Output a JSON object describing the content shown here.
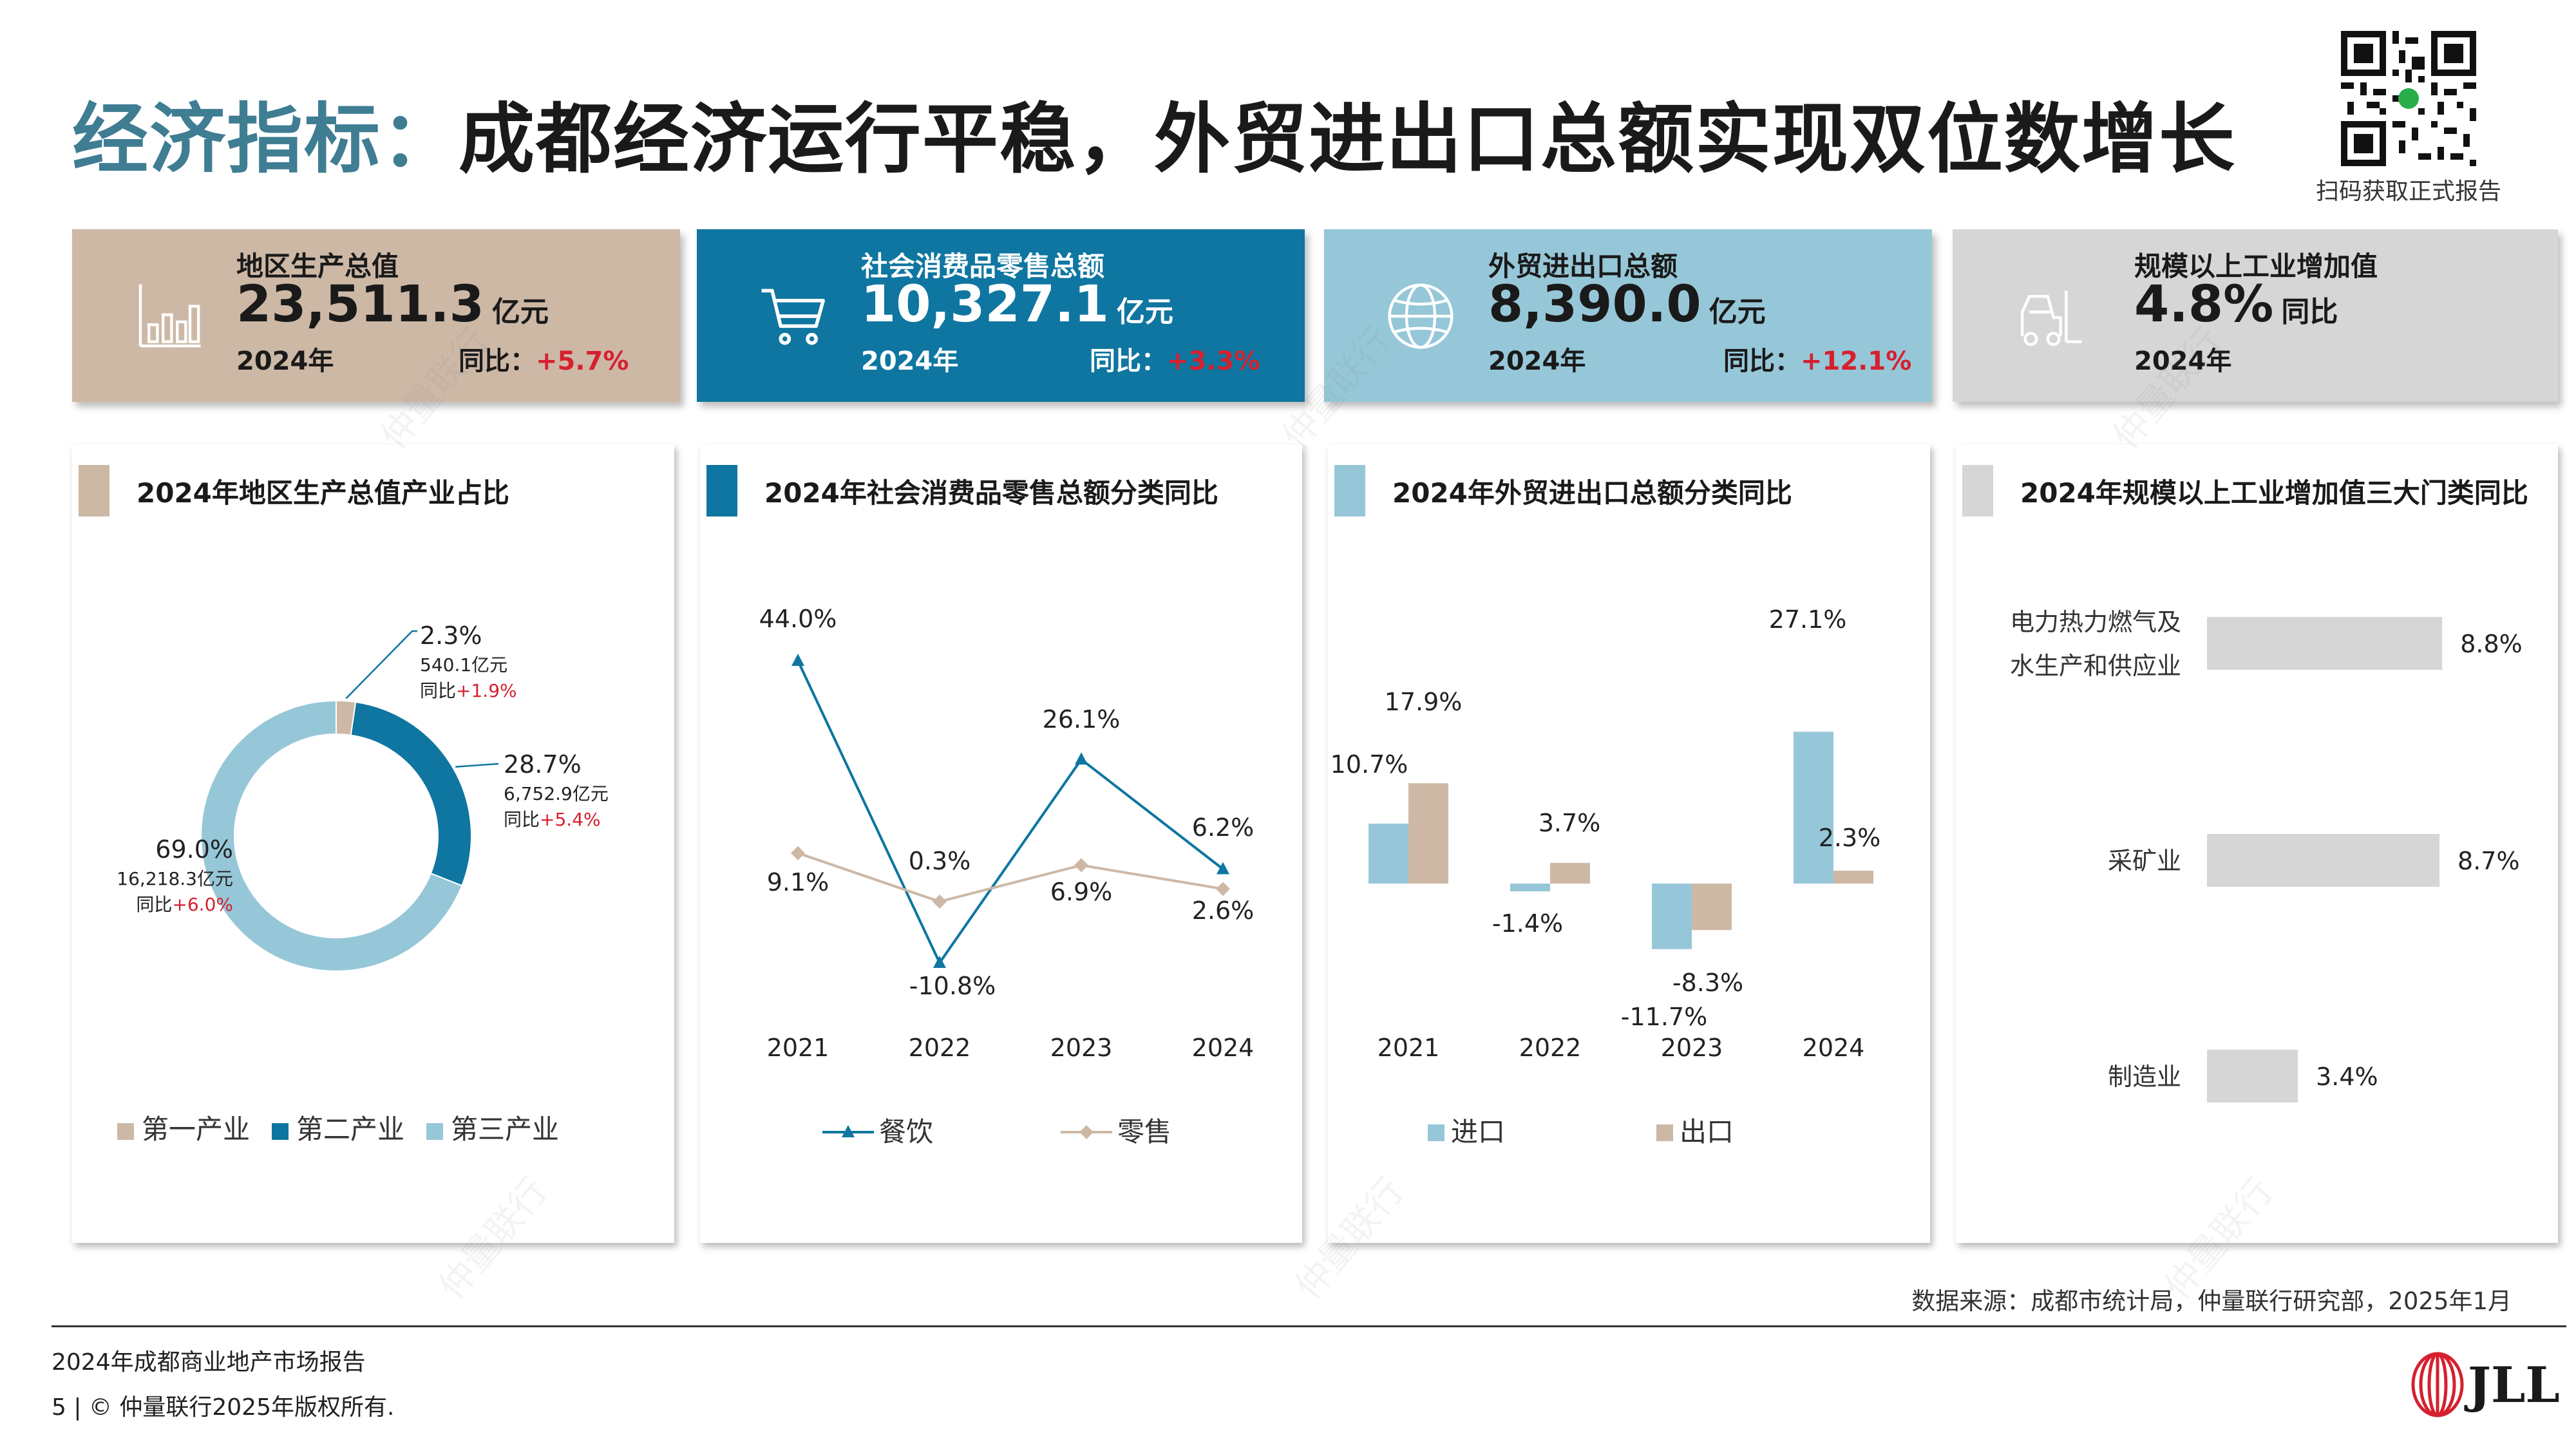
{
  "title": {
    "prefix": "经济指标：",
    "main": "成都经济运行平稳，外贸进出口总额实现双位数增长"
  },
  "qr_caption": "扫码获取正式报告",
  "kpis": [
    {
      "label": "地区生产总值",
      "value": "23,511.3",
      "unit": "亿元",
      "year": "2024年",
      "yoy_label": "同比：",
      "yoy": "+5.7%",
      "bg": "#cdb8a6",
      "fg": "#1a1a1a",
      "icon": "bar-chart-icon"
    },
    {
      "label": "社会消费品零售总额",
      "value": "10,327.1",
      "unit": "亿元",
      "year": "2024年",
      "yoy_label": "同比：",
      "yoy": "+3.3%",
      "bg": "#0e76a0",
      "fg": "#ffffff",
      "icon": "shopping-cart-icon"
    },
    {
      "label": "外贸进出口总额",
      "value": "8,390.0",
      "unit": "亿元",
      "year": "2024年",
      "yoy_label": "同比：",
      "yoy": "+12.1%",
      "bg": "#96c7d8",
      "fg": "#1a1a1a",
      "icon": "globe-icon"
    },
    {
      "label": "规模以上工业增加值",
      "value": "4.8%",
      "unit": "同比",
      "year": "2024年",
      "yoy_label": "",
      "yoy": "",
      "bg": "#d6d6d6",
      "fg": "#1a1a1a",
      "icon": "forklift-icon"
    }
  ],
  "panels": [
    {
      "title": "2024年地区生产总值产业占比",
      "accent": "#cdb8a6"
    },
    {
      "title": "2024年社会消费品零售总额分类同比",
      "accent": "#0e76a0"
    },
    {
      "title": "2024年外贸进出口总额分类同比",
      "accent": "#96c7d8"
    },
    {
      "title": "2024年规模以上工业增加值三大门类同比",
      "accent": "#d6d6d6"
    }
  ],
  "chart_data": [
    {
      "type": "pie",
      "title": "2024年地区生产总值产业占比",
      "legend_position": "bottom",
      "slices": [
        {
          "name": "第一产业",
          "pct": 2.3,
          "pct_label": "2.3%",
          "amount": "540.1亿元",
          "yoy_label": "同比",
          "yoy": "+1.9%",
          "color": "#cdb8a6"
        },
        {
          "name": "第二产业",
          "pct": 28.7,
          "pct_label": "28.7%",
          "amount": "6,752.9亿元",
          "yoy_label": "同比",
          "yoy": "+5.4%",
          "color": "#0e76a0"
        },
        {
          "name": "第三产业",
          "pct": 69.0,
          "pct_label": "69.0%",
          "amount": "16,218.3亿元",
          "yoy_label": "同比",
          "yoy": "+6.0%",
          "color": "#96c7d8"
        }
      ]
    },
    {
      "type": "line",
      "title": "2024年社会消费品零售总额分类同比",
      "categories": [
        "2021",
        "2022",
        "2023",
        "2024"
      ],
      "legend_position": "bottom",
      "series": [
        {
          "name": "餐饮",
          "values": [
            44.0,
            -10.8,
            26.1,
            6.2
          ],
          "labels": [
            "44.0%",
            "-10.8%",
            "26.1%",
            "6.2%"
          ],
          "color": "#0e76a0",
          "marker": "triangle"
        },
        {
          "name": "零售",
          "values": [
            9.1,
            0.3,
            6.9,
            2.6
          ],
          "labels": [
            "9.1%",
            "0.3%",
            "6.9%",
            "2.6%"
          ],
          "color": "#cdb8a6",
          "marker": "diamond"
        }
      ]
    },
    {
      "type": "bar",
      "title": "2024年外贸进出口总额分类同比",
      "categories": [
        "2021",
        "2022",
        "2023",
        "2024"
      ],
      "legend_position": "bottom",
      "series": [
        {
          "name": "进口",
          "values": [
            10.7,
            -1.4,
            -11.7,
            27.1
          ],
          "labels": [
            "10.7%",
            "-1.4%",
            "-11.7%",
            "27.1%"
          ],
          "color": "#96c7d8"
        },
        {
          "name": "出口",
          "values": [
            17.9,
            3.7,
            -8.3,
            2.3
          ],
          "labels": [
            "17.9%",
            "3.7%",
            "-8.3%",
            "2.3%"
          ],
          "color": "#cdb8a6"
        }
      ]
    },
    {
      "type": "bar",
      "orientation": "horizontal",
      "title": "2024年规模以上工业增加值三大门类同比",
      "categories": [
        [
          "电力热力燃气及",
          "水生产和供应业"
        ],
        [
          "采矿业"
        ],
        [
          "制造业"
        ]
      ],
      "values": [
        8.8,
        8.7,
        3.4
      ],
      "labels": [
        "8.8%",
        "8.7%",
        "3.4%"
      ],
      "color": "#d6d6d6"
    }
  ],
  "source": "数据来源：成都市统计局，仲量联行研究部，2025年1月",
  "footer": {
    "report": "2024年成都商业地产市场报告",
    "page": "5 | © 仲量联行2025年版权所有."
  },
  "logo": {
    "text": "JLL",
    "color": "#d6202f"
  },
  "watermark": "仲量联行"
}
